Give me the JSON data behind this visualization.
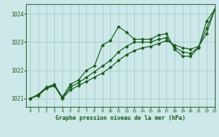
{
  "title": "Graphe pression niveau de la mer (hPa)",
  "bg_color": "#cce8e8",
  "grid_color": "#aacccc",
  "line_color": "#1a5c1a",
  "xlim": [
    -0.5,
    23
  ],
  "ylim": [
    1020.7,
    1024.35
  ],
  "yticks": [
    1021,
    1022,
    1023,
    1024
  ],
  "xticks": [
    0,
    1,
    2,
    3,
    4,
    5,
    6,
    7,
    8,
    9,
    10,
    11,
    12,
    13,
    14,
    15,
    16,
    17,
    18,
    19,
    20,
    21,
    22,
    23
  ],
  "series": [
    {
      "x": [
        0,
        1,
        2,
        3,
        4,
        5,
        6,
        7,
        8,
        9,
        10,
        11,
        12,
        13,
        14,
        15,
        16,
        17,
        18,
        19,
        20,
        21,
        22,
        23
      ],
      "y": [
        1021.0,
        1021.15,
        1021.4,
        1021.5,
        1021.05,
        1021.5,
        1021.65,
        1022.0,
        1022.15,
        1022.9,
        1023.05,
        1023.55,
        1023.35,
        1023.1,
        1023.1,
        1023.1,
        1023.25,
        1023.3,
        1022.75,
        1022.5,
        1022.5,
        1022.8,
        1023.75,
        1024.15
      ]
    },
    {
      "x": [
        0,
        1,
        2,
        3,
        4,
        5,
        6,
        7,
        8,
        9,
        10,
        11,
        12,
        13,
        14,
        15,
        16,
        17,
        18,
        19,
        20,
        21,
        22,
        23
      ],
      "y": [
        1021.0,
        1021.1,
        1021.35,
        1021.45,
        1021.0,
        1021.3,
        1021.45,
        1021.6,
        1021.75,
        1021.9,
        1022.1,
        1022.35,
        1022.55,
        1022.7,
        1022.8,
        1022.85,
        1022.95,
        1023.05,
        1022.9,
        1022.8,
        1022.75,
        1022.85,
        1023.3,
        1024.15
      ]
    },
    {
      "x": [
        0,
        1,
        2,
        3,
        4,
        5,
        6,
        7,
        8,
        9,
        10,
        11,
        12,
        13,
        14,
        15,
        16,
        17,
        18,
        19,
        20,
        21,
        22,
        23
      ],
      "y": [
        1021.0,
        1021.12,
        1021.37,
        1021.47,
        1021.02,
        1021.4,
        1021.55,
        1021.75,
        1021.95,
        1022.15,
        1022.35,
        1022.65,
        1022.85,
        1023.0,
        1023.0,
        1023.0,
        1023.1,
        1023.15,
        1022.82,
        1022.65,
        1022.6,
        1022.82,
        1023.5,
        1024.15
      ]
    }
  ],
  "markersize": 2.5,
  "linewidth": 0.9
}
